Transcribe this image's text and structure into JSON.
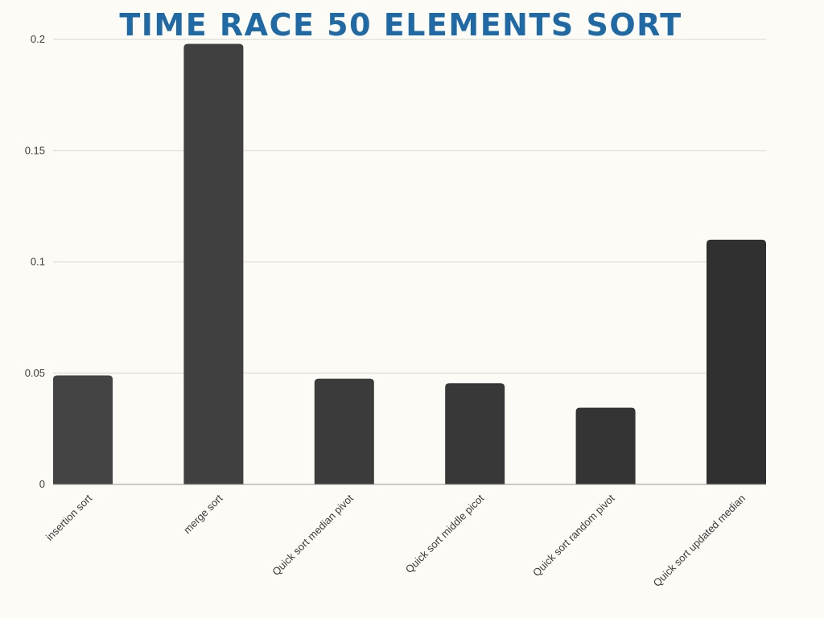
{
  "chart_data": {
    "type": "bar",
    "title": "TIME RACE 50 ELEMENTS SORT",
    "xlabel": "",
    "ylabel": "",
    "categories": [
      "insertion sort",
      "merge sort",
      "Quick sort median pivot",
      "Quick sort middle picot",
      "Quick sort random pivot",
      "Quick sort updated median"
    ],
    "values": [
      0.049,
      0.198,
      0.0475,
      0.0455,
      0.0345,
      0.11
    ],
    "ylim": [
      0,
      0.2
    ],
    "yticks": [
      "0",
      "0.05",
      "0.1",
      "0.15",
      "0.2"
    ],
    "grid": true,
    "legend": "none",
    "colors": {
      "title": "#1f6aa5",
      "bars": [
        "#444444",
        "#404040",
        "#3b3b3b",
        "#383838",
        "#343434",
        "#303030"
      ],
      "grid": "#d6d4cf",
      "background": "#fdfbf5"
    }
  }
}
